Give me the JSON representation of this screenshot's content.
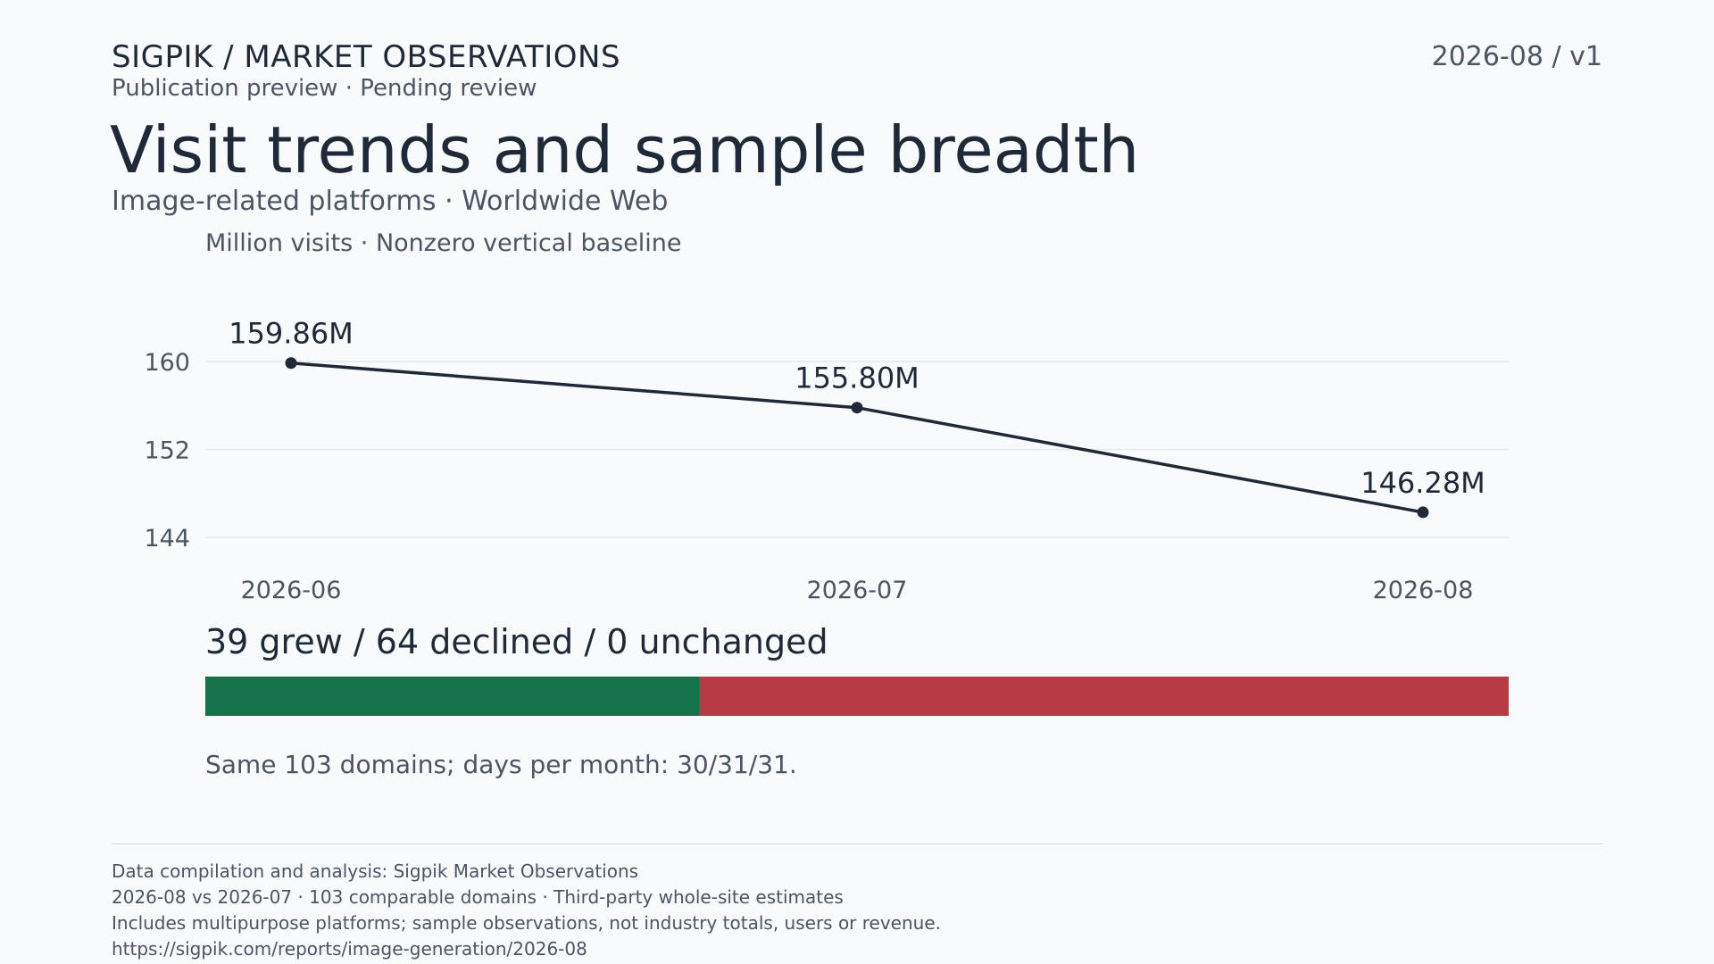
{
  "header": {
    "brand": "SIGPIK / MARKET OBSERVATIONS",
    "status": "Publication preview · Pending review",
    "edition": "2026-08 / v1"
  },
  "title": "Visit trends and sample breadth",
  "subtitle": "Image-related platforms · Worldwide Web",
  "chart_data": {
    "type": "line",
    "title": "Visit trends and sample breadth",
    "ylabel": "Million visits · Nonzero vertical baseline",
    "x": [
      "2026-06",
      "2026-07",
      "2026-08"
    ],
    "series": [
      {
        "values": [
          159.86,
          155.8,
          146.28
        ]
      }
    ],
    "data_labels": [
      "159.86M",
      "155.80M",
      "146.28M"
    ],
    "yticks": [
      144,
      152,
      160
    ],
    "ylim": [
      144,
      160
    ],
    "grid": true,
    "line_color": "#1f2937"
  },
  "breadth": {
    "summary": "39 grew / 64 declined / 0 unchanged",
    "grew": 39,
    "declined": 64,
    "unchanged": 0,
    "colors": {
      "grew": "#15734b",
      "declined": "#b63b45",
      "unchanged": "#9ca3af"
    },
    "note": "Same 103 domains; days per month: 30/31/31."
  },
  "footer": {
    "lines": [
      "Data compilation and analysis: Sigpik Market Observations",
      "2026-08 vs 2026-07 · 103 comparable domains · Third-party whole-site estimates",
      "Includes multipurpose platforms; sample observations, not industry totals, users or revenue.",
      "https://sigpik.com/reports/image-generation/2026-08"
    ]
  }
}
